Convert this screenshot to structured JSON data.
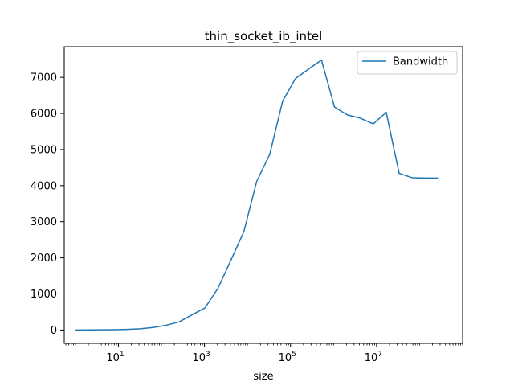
{
  "chart_data": {
    "type": "line",
    "title": "thin_socket_ib_intel",
    "xlabel": "size",
    "ylabel": "",
    "xscale": "log",
    "xlim": [
      0.55,
      1000000000
    ],
    "ylim": [
      -370,
      7850
    ],
    "x_ticks": [
      {
        "value": 10,
        "base": "10",
        "exp": "1"
      },
      {
        "value": 1000,
        "base": "10",
        "exp": "3"
      },
      {
        "value": 100000,
        "base": "10",
        "exp": "5"
      },
      {
        "value": 10000000,
        "base": "10",
        "exp": "7"
      }
    ],
    "y_ticks": [
      0,
      1000,
      2000,
      3000,
      4000,
      5000,
      6000,
      7000
    ],
    "legend": {
      "position": "upper-right",
      "entries": [
        "Bandwidth"
      ]
    },
    "grid": false,
    "colors": {
      "series": "#1f77b4",
      "axes": "#000000",
      "legend_border": "#cccccc"
    },
    "series": [
      {
        "name": "Bandwidth",
        "x": [
          1,
          2,
          4,
          8,
          16,
          32,
          64,
          128,
          256,
          512,
          1024,
          2048,
          4096,
          8192,
          16384,
          32768,
          65536,
          131072,
          262144,
          524288,
          1048576,
          2097152,
          4194304,
          8388608,
          16777216,
          33554432,
          67108864,
          134217728,
          268435456
        ],
        "values": [
          1,
          2,
          5,
          9,
          18,
          35,
          70,
          130,
          225,
          420,
          610,
          1150,
          1930,
          2720,
          4120,
          4860,
          6340,
          6970,
          7230,
          7480,
          6180,
          5960,
          5870,
          5710,
          6030,
          4340,
          4220,
          4210,
          4210
        ]
      }
    ]
  }
}
